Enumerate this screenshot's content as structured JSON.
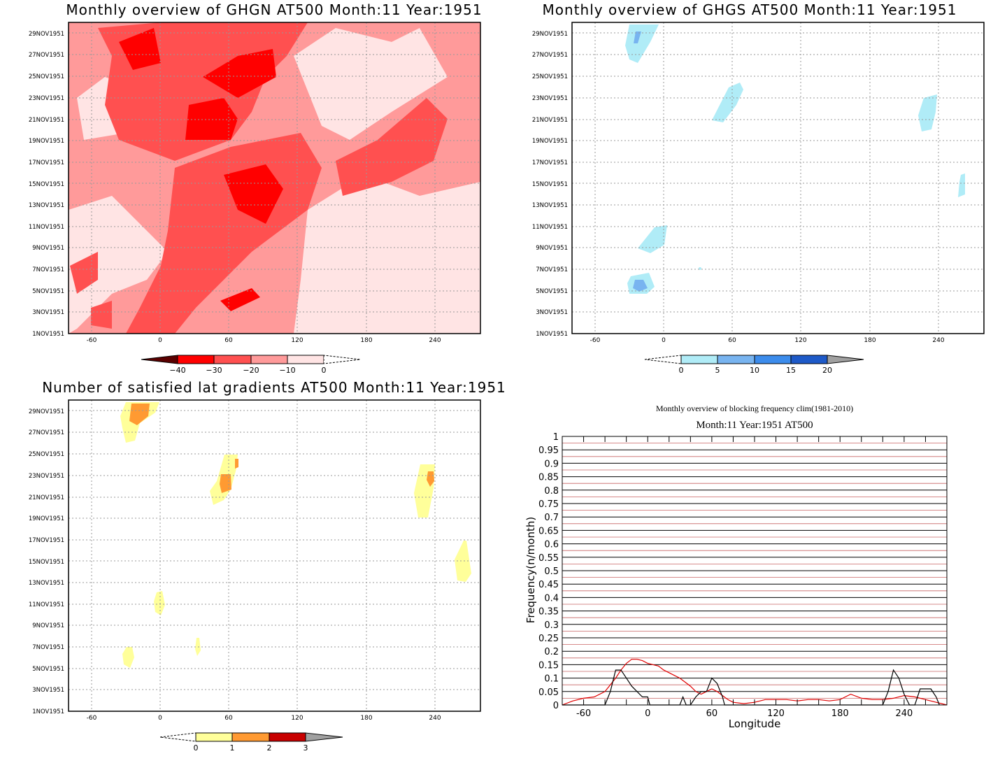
{
  "panels": {
    "ghgn": {
      "title": "Monthly overview of GHGN AT500 Month:11 Year:1951",
      "colorbar_labels": [
        "−40",
        "−30",
        "−20",
        "−10",
        "0"
      ],
      "colorbar_colors": [
        "#5a0000",
        "#ff0000",
        "#ff5050",
        "#ff9a9a",
        "#ffe4e4"
      ]
    },
    "ghgs": {
      "title": "Monthly overview of GHGS AT500 Month:11 Year:1951",
      "colorbar_labels": [
        "0",
        "5",
        "10",
        "15",
        "20"
      ],
      "colorbar_colors": [
        "#b0ecf7",
        "#78b4f0",
        "#3c8cec",
        "#1e5ac8",
        "#a0a0a0"
      ]
    },
    "lat": {
      "title": "Number of satisfied lat gradients AT500 Month:11 Year:1951",
      "colorbar_labels": [
        "0",
        "1",
        "2",
        "3"
      ],
      "colorbar_colors": [
        "#ffff9a",
        "#ff9a32",
        "#c80000",
        "#a0a0a0"
      ]
    },
    "freq": {
      "title": "Monthly overview of blocking frequency clim(1981-2010)",
      "subtitle": "Month:11 Year:1951  AT500"
    }
  },
  "axes": {
    "date_ticks": [
      "1NOV1951",
      "3NOV1951",
      "5NOV1951",
      "7NOV1951",
      "9NOV1951",
      "11NOV1951",
      "13NOV1951",
      "15NOV1951",
      "17NOV1951",
      "19NOV1951",
      "21NOV1951",
      "23NOV1951",
      "25NOV1951",
      "27NOV1951",
      "29NOV1951"
    ],
    "lon_ticks": [
      "-60",
      "0",
      "60",
      "120",
      "180",
      "240"
    ]
  },
  "chart_data": {
    "type": "line",
    "title": "Monthly overview of blocking frequency clim(1981-2010)",
    "subtitle": "Month:11 Year:1951  AT500",
    "xlabel": "Longitude",
    "ylabel": "Frequency(n/month)",
    "xlim": [
      -80,
      280
    ],
    "ylim": [
      0,
      1
    ],
    "x_ticks": [
      "-60",
      "0",
      "60",
      "120",
      "180",
      "240"
    ],
    "y_ticks": [
      "0",
      "0.05",
      "0.1",
      "0.15",
      "0.2",
      "0.25",
      "0.3",
      "0.35",
      "0.4",
      "0.45",
      "0.5",
      "0.55",
      "0.6",
      "0.65",
      "0.7",
      "0.75",
      "0.8",
      "0.85",
      "0.9",
      "0.95",
      "1"
    ],
    "grid": true,
    "series": [
      {
        "color": "#e00000",
        "x": [
          -80,
          -70,
          -60,
          -50,
          -40,
          -30,
          -25,
          -20,
          -15,
          -10,
          -5,
          0,
          5,
          10,
          15,
          20,
          25,
          30,
          35,
          40,
          45,
          50,
          55,
          60,
          65,
          70,
          75,
          80,
          90,
          100,
          110,
          120,
          130,
          140,
          150,
          160,
          170,
          180,
          190,
          200,
          210,
          220,
          230,
          240,
          250,
          260,
          270,
          280
        ],
        "y": [
          0,
          0.015,
          0.025,
          0.03,
          0.05,
          0.1,
          0.13,
          0.155,
          0.17,
          0.17,
          0.165,
          0.155,
          0.15,
          0.145,
          0.13,
          0.12,
          0.11,
          0.1,
          0.085,
          0.07,
          0.05,
          0.04,
          0.05,
          0.06,
          0.05,
          0.035,
          0.02,
          0.01,
          0.005,
          0.01,
          0.02,
          0.02,
          0.02,
          0.015,
          0.02,
          0.02,
          0.015,
          0.02,
          0.04,
          0.025,
          0.02,
          0.02,
          0.025,
          0.035,
          0.03,
          0.02,
          0.01,
          0
        ]
      },
      {
        "color": "#000000",
        "x": [
          -80,
          -40,
          -35,
          -30,
          -25,
          -20,
          -15,
          -10,
          -5,
          0,
          2,
          30,
          33,
          36,
          40,
          45,
          50,
          55,
          60,
          65,
          70,
          72,
          220,
          225,
          230,
          235,
          240,
          245,
          250,
          255,
          260,
          265,
          270,
          273
        ],
        "y": [
          0,
          0,
          0.05,
          0.13,
          0.13,
          0.1,
          0.07,
          0.05,
          0.03,
          0.03,
          0,
          0,
          0.03,
          0,
          0,
          0.03,
          0.05,
          0.05,
          0.1,
          0.08,
          0.03,
          0,
          0,
          0.05,
          0.13,
          0.1,
          0.04,
          0,
          0,
          0.06,
          0.06,
          0.06,
          0.03,
          0
        ]
      }
    ]
  }
}
